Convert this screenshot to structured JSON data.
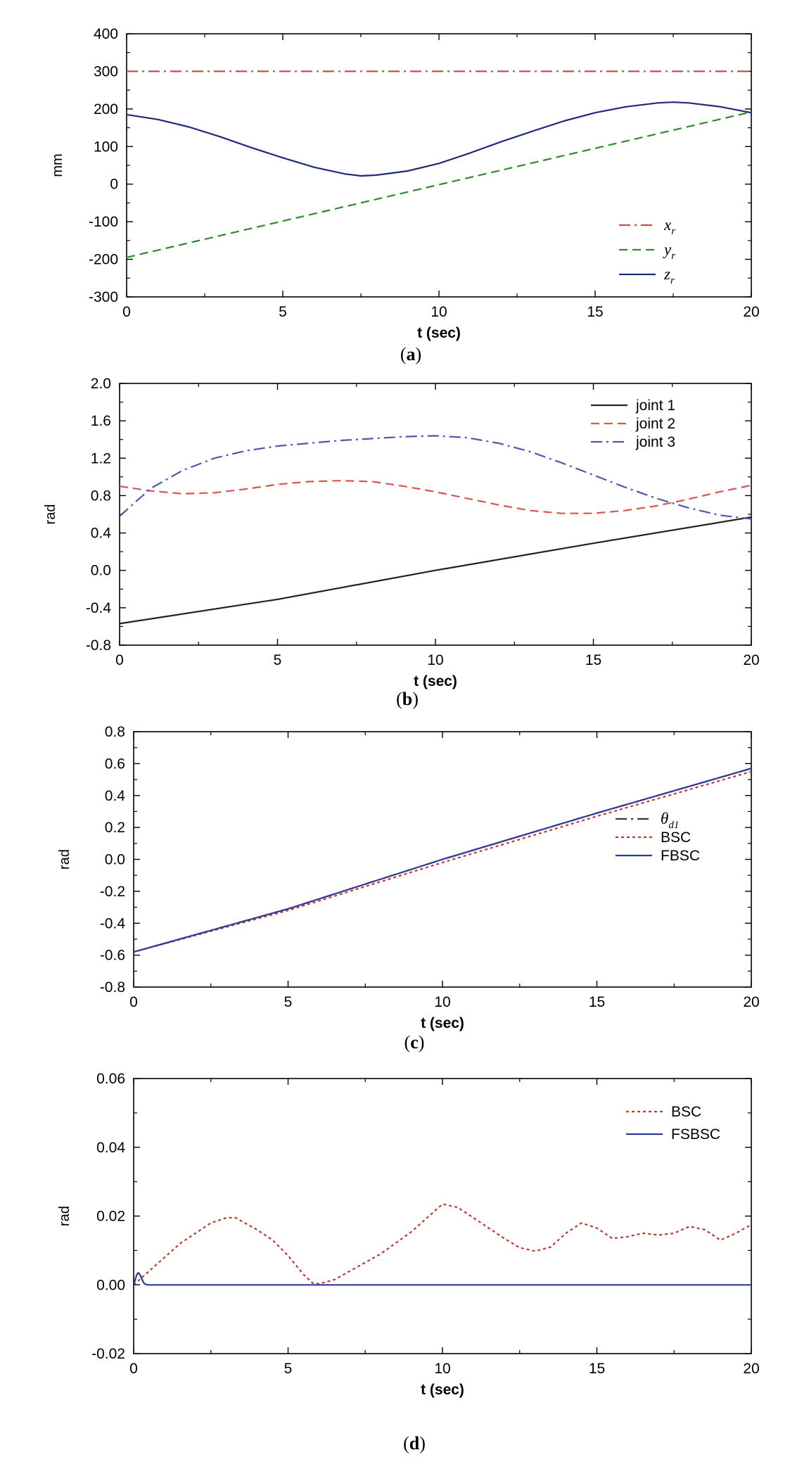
{
  "figure": {
    "panels": [
      "a",
      "b",
      "c",
      "d"
    ]
  },
  "chart_data": [
    {
      "id": "a",
      "type": "line",
      "caption_letter": "a",
      "xlabel": "t (sec)",
      "ylabel": "mm",
      "xlim": [
        0,
        20
      ],
      "ylim": [
        -300,
        400
      ],
      "xticks": [
        0,
        5,
        10,
        15,
        20
      ],
      "yticks": [
        -300,
        -200,
        -100,
        0,
        100,
        200,
        300,
        400
      ],
      "tick_decimals": 0,
      "legend_position": "right-middle",
      "series": [
        {
          "name": "x",
          "sub": "r",
          "color": "#c0504d",
          "style": "dashdot",
          "x": [
            0,
            20
          ],
          "y": [
            300,
            300
          ]
        },
        {
          "name": "y",
          "sub": "r",
          "color": "#2e8b2e",
          "style": "dash",
          "x": [
            0,
            20
          ],
          "y": [
            -195,
            192
          ]
        },
        {
          "name": "z",
          "sub": "r",
          "color": "#1f2a7a",
          "style": "solid",
          "x": [
            0,
            1,
            2,
            3,
            4,
            5,
            6,
            7,
            7.5,
            8,
            9,
            10,
            11,
            12,
            13,
            14,
            15,
            16,
            17,
            17.5,
            18,
            19,
            20
          ],
          "y": [
            185,
            172,
            152,
            126,
            97,
            70,
            45,
            27,
            22,
            24,
            35,
            55,
            83,
            113,
            141,
            168,
            190,
            206,
            216,
            218,
            216,
            206,
            190
          ]
        }
      ]
    },
    {
      "id": "b",
      "type": "line",
      "caption_letter": "b",
      "xlabel": "t (sec)",
      "ylabel": "rad",
      "xlim": [
        0,
        20
      ],
      "ylim": [
        -0.8,
        2.0
      ],
      "xticks": [
        0,
        5,
        10,
        15,
        20
      ],
      "yticks": [
        -0.8,
        -0.4,
        0.0,
        0.4,
        0.8,
        1.2,
        1.6,
        2.0
      ],
      "tick_decimals": 1,
      "legend_position": "top-right",
      "series": [
        {
          "name": "joint 1",
          "color": "#222222",
          "style": "solid",
          "x": [
            0,
            5,
            10,
            15,
            20
          ],
          "y": [
            -0.57,
            -0.31,
            0.0,
            0.29,
            0.57
          ]
        },
        {
          "name": "joint 2",
          "color": "#d9534f",
          "style": "dash",
          "x": [
            0,
            1,
            2,
            3,
            4,
            5,
            6,
            7,
            8,
            9,
            10,
            11,
            12,
            13,
            14,
            15,
            16,
            17,
            18,
            19,
            20
          ],
          "y": [
            0.9,
            0.85,
            0.82,
            0.83,
            0.87,
            0.92,
            0.95,
            0.96,
            0.95,
            0.9,
            0.84,
            0.77,
            0.7,
            0.64,
            0.61,
            0.61,
            0.64,
            0.69,
            0.76,
            0.84,
            0.91
          ]
        },
        {
          "name": "joint 3",
          "color": "#4a5aa8",
          "style": "dashdot",
          "x": [
            0,
            1,
            2,
            3,
            4,
            5,
            6,
            7,
            8,
            9,
            10,
            11,
            12,
            13,
            14,
            15,
            16,
            17,
            18,
            19,
            20
          ],
          "y": [
            0.58,
            0.88,
            1.07,
            1.2,
            1.28,
            1.33,
            1.36,
            1.39,
            1.41,
            1.43,
            1.44,
            1.42,
            1.36,
            1.27,
            1.15,
            1.02,
            0.89,
            0.77,
            0.67,
            0.59,
            0.55
          ]
        }
      ]
    },
    {
      "id": "c",
      "type": "line",
      "caption_letter": "c",
      "xlabel": "t (sec)",
      "ylabel": "rad",
      "xlim": [
        0,
        20
      ],
      "ylim": [
        -0.8,
        0.8
      ],
      "xticks": [
        0,
        5,
        10,
        15,
        20
      ],
      "yticks": [
        -0.8,
        -0.6,
        -0.4,
        -0.2,
        0.0,
        0.2,
        0.4,
        0.6,
        0.8
      ],
      "tick_decimals": 1,
      "legend_position": "right-middle",
      "series": [
        {
          "name": "θ",
          "sub": "d1",
          "color": "#333333",
          "style": "dashdot",
          "x": [
            0,
            5,
            10,
            15,
            20
          ],
          "y": [
            -0.58,
            -0.31,
            0.0,
            0.29,
            0.57
          ]
        },
        {
          "name": "BSC",
          "color": "#c0392b",
          "style": "dot",
          "x": [
            0,
            5,
            10,
            15,
            20
          ],
          "y": [
            -0.58,
            -0.32,
            -0.02,
            0.27,
            0.55
          ]
        },
        {
          "name": "FBSC",
          "color": "#2e3a9c",
          "style": "solid",
          "x": [
            0,
            5,
            10,
            15,
            20
          ],
          "y": [
            -0.58,
            -0.31,
            0.0,
            0.29,
            0.57
          ]
        }
      ]
    },
    {
      "id": "d",
      "type": "line",
      "caption_letter": "d",
      "xlabel": "t (sec)",
      "ylabel": "rad",
      "xlim": [
        0,
        20
      ],
      "ylim": [
        -0.02,
        0.06
      ],
      "xticks": [
        0,
        5,
        10,
        15,
        20
      ],
      "yticks": [
        -0.02,
        0.0,
        0.02,
        0.04,
        0.06
      ],
      "tick_decimals": 2,
      "legend_position": "top-right",
      "series": [
        {
          "name": "BSC",
          "color": "#c0392b",
          "style": "dot",
          "x": [
            0,
            0.5,
            1,
            1.5,
            2,
            2.5,
            3,
            3.3,
            3.6,
            4,
            4.5,
            5,
            5.5,
            5.8,
            6,
            6.5,
            7,
            8,
            9,
            10,
            10.5,
            11,
            12,
            12.5,
            13,
            13.5,
            14,
            14.5,
            15,
            15.5,
            16,
            16.5,
            17,
            17.5,
            18,
            18.5,
            19,
            19.5,
            20
          ],
          "y": [
            0.0,
            0.004,
            0.008,
            0.012,
            0.015,
            0.018,
            0.0195,
            0.0195,
            0.018,
            0.016,
            0.013,
            0.0085,
            0.003,
            0.0005,
            0.0003,
            0.0015,
            0.004,
            0.009,
            0.0155,
            0.0235,
            0.0225,
            0.0195,
            0.0135,
            0.0108,
            0.0098,
            0.011,
            0.015,
            0.018,
            0.0165,
            0.0135,
            0.014,
            0.015,
            0.0145,
            0.015,
            0.017,
            0.016,
            0.013,
            0.015,
            0.0175
          ]
        },
        {
          "name": "FSBSC",
          "color": "#2e3a9c",
          "style": "solid",
          "x": [
            0,
            0.05,
            0.1,
            0.15,
            0.2,
            0.25,
            0.3,
            0.35,
            0.45,
            0.6,
            20
          ],
          "y": [
            0.0,
            0.0015,
            0.003,
            0.0035,
            0.003,
            0.002,
            0.001,
            0.0003,
            0.0,
            0.0,
            0.0
          ]
        }
      ]
    }
  ]
}
